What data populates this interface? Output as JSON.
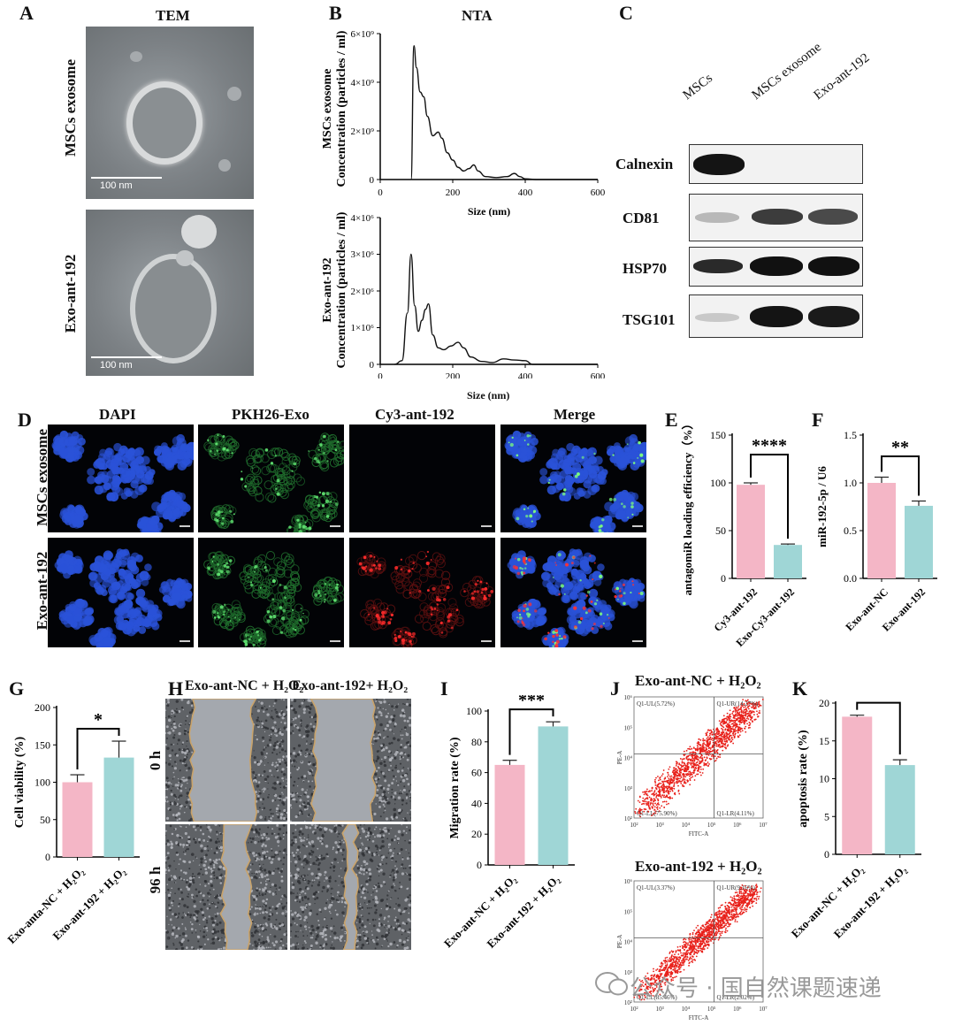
{
  "panel_letters": {
    "A": "A",
    "B": "B",
    "C": "C",
    "D": "D",
    "E": "E",
    "F": "F",
    "G": "G",
    "H": "H",
    "I": "I",
    "J": "J",
    "K": "K"
  },
  "panelA": {
    "title": "TEM",
    "row_labels": [
      "MSCs exosome",
      "Exo-ant-192"
    ],
    "scale_bar": "100 nm"
  },
  "panelB": {
    "title": "NTA",
    "top_ylabel_line1": "MSCs exosome",
    "top_ylabel_line2": "Concentration (particles / ml)",
    "bottom_ylabel_line1": "Exo-ant-192",
    "bottom_ylabel_line2": "Concentration (particles / ml)",
    "xlabel": "Size (nm)",
    "top_yticks": [
      "0",
      "2×10⁹",
      "4×10⁹",
      "6×10⁹"
    ],
    "bottom_yticks": [
      "0",
      "1×10⁶",
      "2×10⁶",
      "3×10⁶",
      "4×10⁶"
    ],
    "xticks": [
      "0",
      "200",
      "400",
      "600"
    ]
  },
  "panelC": {
    "lanes": [
      "MSCs",
      "MSCs exosome",
      "Exo-ant-192"
    ],
    "proteins": [
      "Calnexin",
      "CD81",
      "HSP70",
      "TSG101"
    ]
  },
  "panelD": {
    "columns": [
      "DAPI",
      "PKH26-Exo",
      "Cy3-ant-192",
      "Merge"
    ],
    "rows": [
      "MSCs exosome",
      "Exo-ant-192"
    ]
  },
  "panelE": {
    "ylabel": "antagomiR loading efficiency（%）",
    "significance": "****"
  },
  "panelF": {
    "ylabel": "miR-192-5p / U6",
    "significance": "**"
  },
  "panelG": {
    "ylabel": "Cell viability (%)",
    "significance": "*"
  },
  "panelH": {
    "col_titles": [
      "Exo-ant-NC + H₂O₂",
      "Exo-ant-192+ H₂O₂"
    ],
    "row_labels": [
      "0 h",
      "96 h"
    ]
  },
  "panelI": {
    "ylabel": "Migration rate (%)",
    "significance": "***"
  },
  "panelJ": {
    "top_title": "Exo-ant-NC + H₂O₂",
    "bottom_title": "Exo-ant-192 + H₂O₂",
    "top_quadrants": [
      "Q1-UL(5.72%)",
      "Q1-UR(14.27%)",
      "Q1-LL(75.90%)",
      "Q1-LR(4.11%)"
    ],
    "bottom_quadrants": [
      "Q1-UL(3.37%)",
      "Q1-UR(9.16%)",
      "Q1-LL(85.46%)",
      "Q1-LR(2.02%)"
    ],
    "xaxis": "FITC-A",
    "yaxis": "PE-A",
    "ticks": [
      "10²",
      "10³",
      "10⁴",
      "10⁵",
      "10⁶",
      "10⁷"
    ]
  },
  "panelK": {
    "ylabel": "apoptosis rate (%)",
    "significance": "***"
  },
  "watermark": "公众号 · 国自然课题速递",
  "colors": {
    "pink": "#f4b6c6",
    "teal": "#9fd6d6",
    "red_dot": "#e8201a"
  },
  "chart_data": [
    {
      "id": "B-top",
      "type": "line",
      "title": "NTA",
      "xlabel": "Size (nm)",
      "ylabel": "Concentration (particles / ml)",
      "xlim": [
        0,
        600
      ],
      "ylim": [
        0,
        6000000000.0
      ],
      "x": [
        85,
        93,
        100,
        110,
        120,
        130,
        145,
        160,
        170,
        185,
        200,
        215,
        230,
        245,
        258,
        270,
        290,
        320,
        350,
        370,
        385,
        400,
        430
      ],
      "y": [
        0,
        5500000000.0,
        4600000000.0,
        3600000000.0,
        3400000000.0,
        2600000000.0,
        1800000000.0,
        1950000000.0,
        1700000000.0,
        1100000000.0,
        800000000.0,
        500000000.0,
        350000000.0,
        450000000.0,
        600000000.0,
        350000000.0,
        120000000.0,
        80000000.0,
        120000000.0,
        250000000.0,
        120000000.0,
        30000000.0,
        0
      ]
    },
    {
      "id": "B-bottom",
      "type": "line",
      "xlabel": "Size (nm)",
      "ylabel": "Concentration (particles / ml)",
      "xlim": [
        0,
        600
      ],
      "ylim": [
        0,
        4000000.0
      ],
      "x": [
        40,
        60,
        75,
        85,
        95,
        105,
        115,
        125,
        133,
        145,
        160,
        175,
        195,
        215,
        230,
        250,
        280,
        310,
        340,
        370,
        400,
        420
      ],
      "y": [
        0,
        100000.0,
        1400000.0,
        3000000.0,
        1600000.0,
        900000.0,
        1200000.0,
        1500000.0,
        1650000.0,
        800000.0,
        450000.0,
        400000.0,
        500000.0,
        600000.0,
        450000.0,
        200000.0,
        80000.0,
        50000.0,
        150000.0,
        120000.0,
        100000.0,
        0
      ]
    },
    {
      "id": "E",
      "type": "bar",
      "categories": [
        "Cy3-ant-192",
        "Exo-Cy3-ant-192"
      ],
      "values": [
        98,
        35
      ],
      "errors": [
        2,
        1
      ],
      "ylim": [
        0,
        150
      ],
      "yticks": [
        0,
        50,
        100,
        150
      ],
      "ylabel": "antagomiR loading efficiency（%）"
    },
    {
      "id": "F",
      "type": "bar",
      "categories": [
        "Exo-ant-NC",
        "Exo-ant-192"
      ],
      "values": [
        1.0,
        0.76
      ],
      "errors": [
        0.06,
        0.05
      ],
      "ylim": [
        0,
        1.5
      ],
      "yticks": [
        0.0,
        0.5,
        1.0,
        1.5
      ],
      "ylabel": "miR-192-5p / U6"
    },
    {
      "id": "G",
      "type": "bar",
      "categories": [
        "Exo-anta-NC + H₂O₂",
        "Exo-ant-192 + H₂O₂"
      ],
      "values": [
        100,
        133
      ],
      "errors": [
        10,
        22
      ],
      "ylim": [
        0,
        200
      ],
      "yticks": [
        0,
        50,
        100,
        150,
        200
      ],
      "ylabel": "Cell viability (%)"
    },
    {
      "id": "I",
      "type": "bar",
      "categories": [
        "Exo-ant-NC + H₂O₂",
        "Exo-ant-192 + H₂O₂"
      ],
      "values": [
        65,
        90
      ],
      "errors": [
        3,
        3
      ],
      "ylim": [
        0,
        100
      ],
      "yticks": [
        0,
        20,
        40,
        60,
        80,
        100
      ],
      "ylabel": "Migration rate (%)"
    },
    {
      "id": "K",
      "type": "bar",
      "categories": [
        "Exo-ant-NC + H₂O₂",
        "Exo-ant-192 + H₂O₂"
      ],
      "values": [
        18.2,
        11.8
      ],
      "errors": [
        0.2,
        0.7
      ],
      "ylim": [
        0,
        20
      ],
      "yticks": [
        0,
        5,
        10,
        15,
        20
      ],
      "ylabel": "apoptosis rate (%)"
    }
  ]
}
